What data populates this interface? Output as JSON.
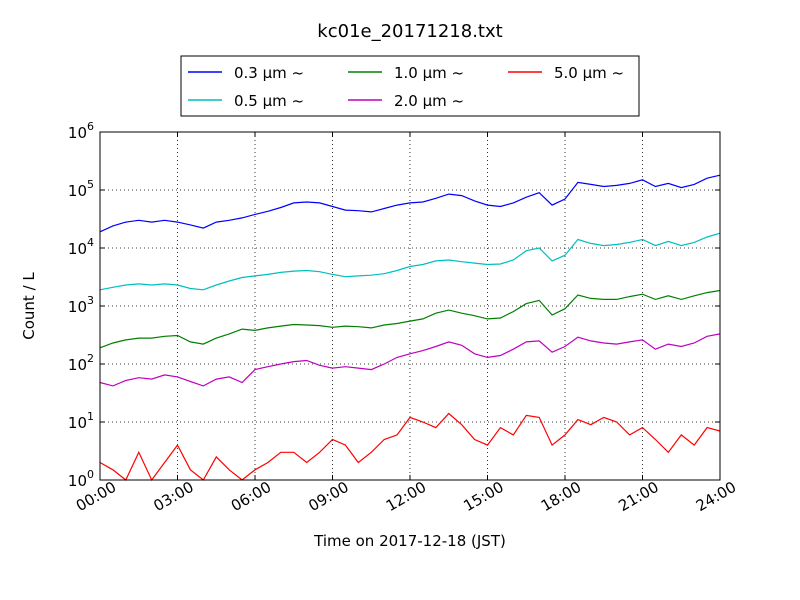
{
  "chart_data": {
    "type": "line",
    "title": "kc01e_20171218.txt",
    "xlabel": "Time on 2017-12-18 (JST)",
    "ylabel": "Count / L",
    "yscale": "log",
    "ylim": [
      1,
      1000000
    ],
    "xlim": [
      "00:00",
      "24:00"
    ],
    "grid": true,
    "legend_position": "top-center",
    "x_ticks": [
      "00:00",
      "03:00",
      "06:00",
      "09:00",
      "12:00",
      "15:00",
      "18:00",
      "21:00",
      "24:00"
    ],
    "y_ticks": [
      {
        "base": "10",
        "exp": "0"
      },
      {
        "base": "10",
        "exp": "1"
      },
      {
        "base": "10",
        "exp": "2"
      },
      {
        "base": "10",
        "exp": "3"
      },
      {
        "base": "10",
        "exp": "4"
      },
      {
        "base": "10",
        "exp": "5"
      },
      {
        "base": "10",
        "exp": "6"
      }
    ],
    "x_hours": [
      0,
      0.5,
      1,
      1.5,
      2,
      2.5,
      3,
      3.5,
      4,
      4.5,
      5,
      5.5,
      6,
      6.5,
      7,
      7.5,
      8,
      8.5,
      9,
      9.5,
      10,
      10.5,
      11,
      11.5,
      12,
      12.5,
      13,
      13.5,
      14,
      14.5,
      15,
      15.5,
      16,
      16.5,
      17,
      17.5,
      18,
      18.5,
      19,
      19.5,
      20,
      20.5,
      21,
      21.5,
      22,
      22.5,
      23,
      23.5,
      24
    ],
    "series": [
      {
        "name": "0.3 μm ~",
        "color": "#0000ff",
        "values": [
          19000,
          24000,
          28000,
          30000,
          28000,
          30000,
          28000,
          25000,
          22000,
          28000,
          30000,
          33000,
          38000,
          43000,
          50000,
          60000,
          62000,
          60000,
          52000,
          45000,
          44000,
          42000,
          48000,
          55000,
          60000,
          62000,
          72000,
          85000,
          80000,
          65000,
          55000,
          52000,
          60000,
          75000,
          90000,
          55000,
          70000,
          135000,
          125000,
          115000,
          120000,
          130000,
          150000,
          115000,
          130000,
          110000,
          125000,
          160000,
          180000
        ]
      },
      {
        "name": "0.5 μm ~",
        "color": "#00bfbf",
        "values": [
          1900,
          2100,
          2300,
          2400,
          2300,
          2400,
          2300,
          2000,
          1900,
          2300,
          2700,
          3100,
          3300,
          3500,
          3800,
          4000,
          4100,
          3900,
          3500,
          3200,
          3300,
          3400,
          3600,
          4100,
          4800,
          5200,
          6000,
          6200,
          5800,
          5500,
          5200,
          5300,
          6200,
          9000,
          10000,
          6000,
          7500,
          14000,
          12000,
          11000,
          11500,
          12500,
          14000,
          11000,
          13000,
          11000,
          12500,
          15500,
          18000
        ]
      },
      {
        "name": "1.0 μm ~",
        "color": "#008000",
        "values": [
          190,
          230,
          260,
          280,
          280,
          300,
          310,
          240,
          220,
          280,
          330,
          400,
          380,
          420,
          450,
          480,
          470,
          460,
          430,
          450,
          440,
          420,
          470,
          500,
          550,
          600,
          750,
          850,
          750,
          680,
          600,
          620,
          800,
          1100,
          1250,
          700,
          900,
          1550,
          1350,
          1300,
          1300,
          1450,
          1600,
          1300,
          1500,
          1300,
          1500,
          1700,
          1850
        ]
      },
      {
        "name": "2.0 μm ~",
        "color": "#bf00bf",
        "values": [
          48,
          42,
          52,
          58,
          55,
          65,
          60,
          50,
          42,
          55,
          60,
          48,
          80,
          90,
          100,
          110,
          115,
          95,
          85,
          90,
          85,
          80,
          100,
          130,
          150,
          170,
          200,
          240,
          210,
          150,
          130,
          140,
          180,
          240,
          250,
          160,
          200,
          290,
          250,
          230,
          220,
          240,
          260,
          180,
          220,
          200,
          230,
          300,
          330
        ]
      },
      {
        "name": "5.0 μm ~",
        "color": "#ff0000",
        "values": [
          2,
          1.5,
          1,
          3,
          1,
          2,
          4,
          1.5,
          1,
          2.5,
          1.5,
          1,
          1.5,
          2,
          3,
          3,
          2,
          3,
          5,
          4,
          2,
          3,
          5,
          6,
          12,
          10,
          8,
          14,
          9,
          5,
          4,
          8,
          6,
          13,
          12,
          4,
          6,
          11,
          9,
          12,
          10,
          6,
          8,
          5,
          3,
          6,
          4,
          8,
          7
        ]
      }
    ]
  }
}
